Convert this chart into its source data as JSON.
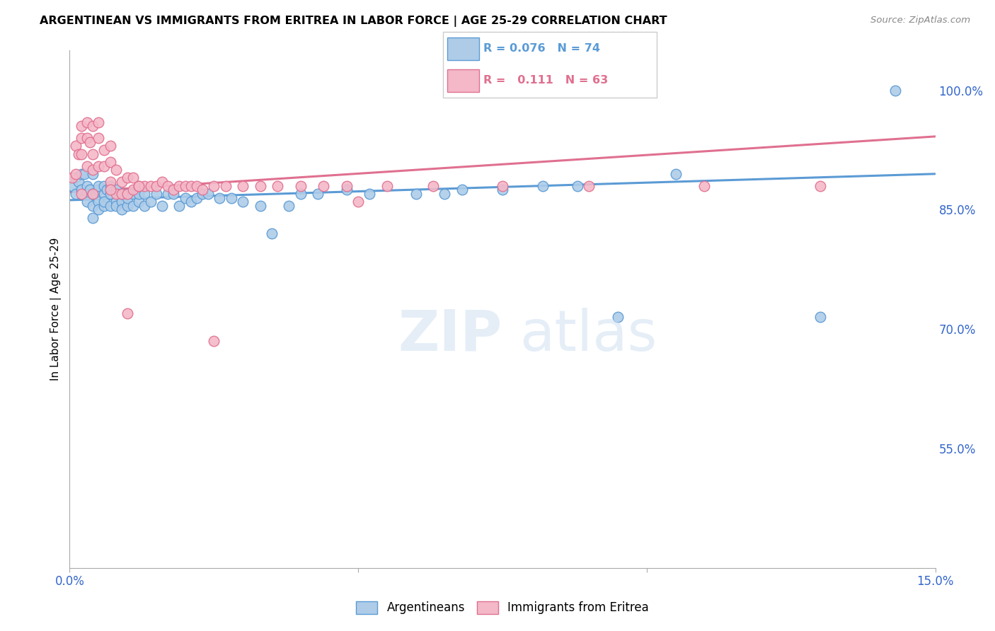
{
  "title": "ARGENTINEAN VS IMMIGRANTS FROM ERITREA IN LABOR FORCE | AGE 25-29 CORRELATION CHART",
  "source": "Source: ZipAtlas.com",
  "ylabel": "In Labor Force | Age 25-29",
  "xlim": [
    0.0,
    0.15
  ],
  "ylim": [
    0.4,
    1.05
  ],
  "yticks_right": [
    0.55,
    0.7,
    0.85,
    1.0
  ],
  "ytick_labels_right": [
    "55.0%",
    "70.0%",
    "85.0%",
    "100.0%"
  ],
  "legend_R_blue": "0.076",
  "legend_N_blue": "74",
  "legend_R_pink": "0.111",
  "legend_N_pink": "63",
  "blue_color": "#aecce8",
  "blue_edge": "#5b9bd5",
  "pink_color": "#f4b8c8",
  "pink_edge": "#e07090",
  "blue_line_color": "#5b9bd5",
  "pink_line_color": "#e07090",
  "blue_scatter_x": [
    0.0005,
    0.001,
    0.001,
    0.0015,
    0.002,
    0.002,
    0.0025,
    0.003,
    0.003,
    0.003,
    0.0035,
    0.004,
    0.004,
    0.004,
    0.004,
    0.0045,
    0.005,
    0.005,
    0.005,
    0.005,
    0.006,
    0.006,
    0.006,
    0.006,
    0.0065,
    0.007,
    0.007,
    0.007,
    0.008,
    0.008,
    0.008,
    0.009,
    0.009,
    0.009,
    0.01,
    0.01,
    0.01,
    0.011,
    0.011,
    0.012,
    0.012,
    0.013,
    0.013,
    0.014,
    0.015,
    0.016,
    0.017,
    0.018,
    0.019,
    0.02,
    0.021,
    0.022,
    0.023,
    0.024,
    0.026,
    0.028,
    0.03,
    0.033,
    0.035,
    0.038,
    0.04,
    0.043,
    0.048,
    0.052,
    0.06,
    0.065,
    0.068,
    0.075,
    0.082,
    0.088,
    0.095,
    0.105,
    0.13,
    0.143
  ],
  "blue_scatter_y": [
    0.88,
    0.89,
    0.87,
    0.885,
    0.895,
    0.875,
    0.895,
    0.88,
    0.87,
    0.86,
    0.875,
    0.87,
    0.855,
    0.84,
    0.895,
    0.87,
    0.875,
    0.86,
    0.85,
    0.88,
    0.855,
    0.87,
    0.86,
    0.88,
    0.875,
    0.855,
    0.87,
    0.88,
    0.86,
    0.875,
    0.855,
    0.86,
    0.85,
    0.87,
    0.855,
    0.87,
    0.865,
    0.855,
    0.87,
    0.86,
    0.87,
    0.855,
    0.87,
    0.86,
    0.87,
    0.855,
    0.87,
    0.87,
    0.855,
    0.865,
    0.86,
    0.865,
    0.87,
    0.87,
    0.865,
    0.865,
    0.86,
    0.855,
    0.82,
    0.855,
    0.87,
    0.87,
    0.875,
    0.87,
    0.87,
    0.87,
    0.875,
    0.875,
    0.88,
    0.88,
    0.715,
    0.895,
    0.715,
    1.0
  ],
  "pink_scatter_x": [
    0.0005,
    0.001,
    0.001,
    0.0015,
    0.002,
    0.002,
    0.002,
    0.003,
    0.003,
    0.003,
    0.0035,
    0.004,
    0.004,
    0.004,
    0.005,
    0.005,
    0.005,
    0.006,
    0.006,
    0.007,
    0.007,
    0.007,
    0.008,
    0.008,
    0.009,
    0.009,
    0.01,
    0.01,
    0.011,
    0.011,
    0.012,
    0.013,
    0.014,
    0.015,
    0.016,
    0.017,
    0.018,
    0.019,
    0.02,
    0.021,
    0.022,
    0.023,
    0.025,
    0.027,
    0.03,
    0.033,
    0.036,
    0.04,
    0.044,
    0.048,
    0.055,
    0.063,
    0.075,
    0.09,
    0.11,
    0.13,
    0.01,
    0.025,
    0.05,
    0.002,
    0.004,
    0.007,
    0.012
  ],
  "pink_scatter_y": [
    0.89,
    0.93,
    0.895,
    0.92,
    0.94,
    0.955,
    0.92,
    0.94,
    0.96,
    0.905,
    0.935,
    0.955,
    0.92,
    0.9,
    0.94,
    0.96,
    0.905,
    0.925,
    0.905,
    0.91,
    0.93,
    0.885,
    0.9,
    0.87,
    0.885,
    0.87,
    0.89,
    0.87,
    0.89,
    0.875,
    0.88,
    0.88,
    0.88,
    0.88,
    0.885,
    0.88,
    0.875,
    0.88,
    0.88,
    0.88,
    0.88,
    0.875,
    0.88,
    0.88,
    0.88,
    0.88,
    0.88,
    0.88,
    0.88,
    0.88,
    0.88,
    0.88,
    0.88,
    0.88,
    0.88,
    0.88,
    0.72,
    0.685,
    0.86,
    0.87,
    0.87,
    0.875,
    0.88
  ],
  "blue_trendline_x": [
    0.0,
    0.15
  ],
  "blue_trendline_y": [
    0.862,
    0.895
  ],
  "pink_trendline_x": [
    0.0,
    0.15
  ],
  "pink_trendline_y": [
    0.872,
    0.942
  ]
}
